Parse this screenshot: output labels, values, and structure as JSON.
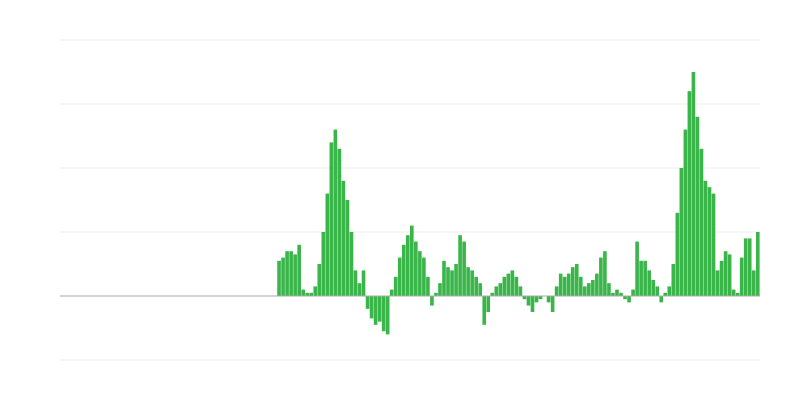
{
  "chart_data": {
    "type": "bar",
    "color": "#39b54a",
    "values": [
      0,
      0,
      0,
      0,
      0,
      0,
      0,
      0,
      0,
      0,
      0,
      0,
      0,
      0,
      0,
      0,
      0,
      0,
      0,
      0,
      0,
      0,
      0,
      0,
      0,
      0,
      0,
      0,
      0,
      0,
      0,
      0,
      0,
      0,
      0,
      0,
      0,
      0,
      0,
      0,
      0,
      0,
      0,
      0,
      0,
      0,
      0,
      0,
      0,
      0,
      0,
      0,
      0,
      0,
      0.55,
      0.6,
      0.7,
      0.7,
      0.65,
      0.8,
      0.1,
      0.05,
      0.05,
      0.15,
      0.5,
      1.0,
      1.6,
      2.4,
      2.6,
      2.3,
      1.8,
      1.5,
      1.0,
      0.4,
      0.2,
      0.4,
      -0.2,
      -0.35,
      -0.45,
      -0.4,
      -0.55,
      -0.6,
      0.1,
      0.3,
      0.6,
      0.8,
      0.95,
      1.1,
      0.85,
      0.7,
      0.6,
      0.3,
      -0.15,
      0.05,
      0.2,
      0.55,
      0.45,
      0.4,
      0.5,
      0.95,
      0.85,
      0.45,
      0.4,
      0.3,
      0.2,
      -0.45,
      -0.25,
      0.05,
      0.15,
      0.2,
      0.3,
      0.35,
      0.4,
      0.3,
      0.15,
      -0.05,
      -0.15,
      -0.25,
      -0.1,
      -0.05,
      0,
      -0.1,
      -0.25,
      0.15,
      0.35,
      0.3,
      0.35,
      0.45,
      0.5,
      0.3,
      0.15,
      0.2,
      0.25,
      0.35,
      0.6,
      0.7,
      0.2,
      0.05,
      0.1,
      0.05,
      -0.05,
      -0.1,
      0.1,
      0.85,
      0.55,
      0.55,
      0.4,
      0.25,
      0.15,
      -0.1,
      0.05,
      0.15,
      0.5,
      1.3,
      2.0,
      2.6,
      3.2,
      3.5,
      2.8,
      2.3,
      1.8,
      1.7,
      1.6,
      0.4,
      0.55,
      0.7,
      0.65,
      0.1,
      0.05,
      0.6,
      0.9,
      0.9,
      0.4,
      1.0
    ],
    "ylim": [
      -1,
      4
    ],
    "yticks": [
      -1,
      0,
      1,
      2,
      3,
      4
    ],
    "grid": true
  }
}
